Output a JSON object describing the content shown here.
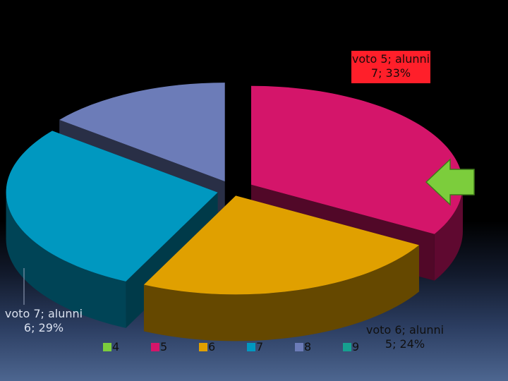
{
  "chart_data": {
    "type": "pie",
    "style": "3d-exploded",
    "categories": [
      "4",
      "5",
      "6",
      "7",
      "8",
      "9"
    ],
    "values": [
      0,
      7,
      5,
      6,
      3,
      0
    ],
    "colors": [
      "#7ccd3c",
      "#d4156a",
      "#e0a000",
      "#0098c0",
      "#6c7cb8",
      "#16a090"
    ],
    "data_labels": [
      {
        "category": "5",
        "text_line1": "voto 5; alunni",
        "text_line2": "7; 33%"
      },
      {
        "category": "7",
        "text_line1": "voto 7; alunni",
        "text_line2": "6; 29%"
      },
      {
        "category": "6",
        "text_line1": "voto 6; alunni",
        "text_line2": "5; 24%"
      }
    ],
    "legend": {
      "placement": "bottom",
      "entries": [
        "4",
        "5",
        "6",
        "7",
        "8",
        "9"
      ]
    },
    "annotation": {
      "shape": "arrow-left",
      "color": "#7ccd3c",
      "target_category": "5"
    }
  }
}
